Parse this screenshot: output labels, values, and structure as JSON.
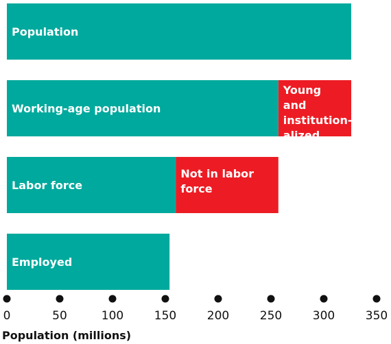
{
  "chart_data": {
    "type": "bar",
    "orientation": "horizontal",
    "stacked": true,
    "categories": [
      "Population",
      "Working-age population",
      "Labor force",
      "Employed"
    ],
    "series": [
      {
        "values": [
          326,
          257,
          160,
          154
        ],
        "color": "#00a99d",
        "labels": [
          "Population",
          "Working-age population",
          "Labor force",
          "Employed"
        ]
      },
      {
        "values": [
          0,
          69,
          97,
          0
        ],
        "color": "#ed1c24",
        "labels": [
          "",
          "Young and institution-alized",
          "Not in labor force",
          ""
        ]
      }
    ],
    "xlabel": "Population (millions)",
    "xlim": [
      0,
      350
    ],
    "xticks": [
      0,
      50,
      100,
      150,
      200,
      250,
      300,
      350
    ],
    "tick_marker": "dot",
    "grid": false
  }
}
